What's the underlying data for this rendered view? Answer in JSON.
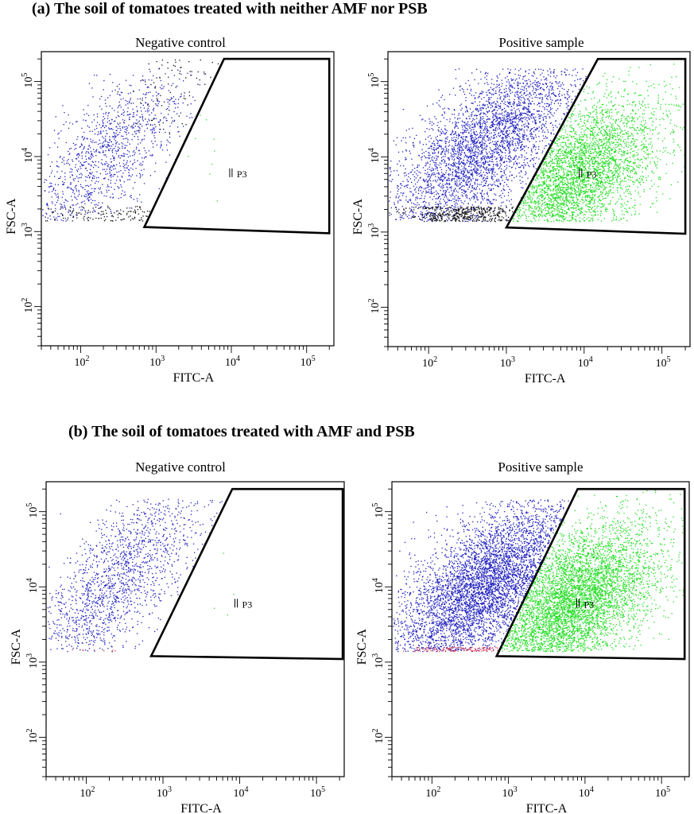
{
  "sections": [
    {
      "label": "(a) The soil of tomatoes treated with neither AMF nor PSB"
    },
    {
      "label": "(b) The soil of tomatoes treated with AMF and PSB"
    }
  ],
  "colors": {
    "negative_events": "#1f1fbf",
    "debris_events": "#111111",
    "gated_events": "#22dd22",
    "low_events": "#e0405a",
    "gate_outline": "#000000"
  },
  "chart_data": [
    {
      "type": "scatter",
      "title": "Negative control",
      "xlabel": "FITC-A",
      "ylabel": "FSC-A",
      "xscale": "log",
      "yscale": "log",
      "xlim": [
        30,
        230000
      ],
      "ylim": [
        30,
        250000
      ],
      "xticks": [
        {
          "value": 100,
          "label": "10",
          "exp": "2"
        },
        {
          "value": 1000,
          "label": "10",
          "exp": "3"
        },
        {
          "value": 10000,
          "label": "10",
          "exp": "4"
        },
        {
          "value": 100000,
          "label": "10",
          "exp": "5"
        }
      ],
      "yticks": [
        {
          "value": 100,
          "label": "10",
          "exp": "2"
        },
        {
          "value": 1000,
          "label": "10",
          "exp": "3"
        },
        {
          "value": 10000,
          "label": "10",
          "exp": "4"
        },
        {
          "value": 100000,
          "label": "10",
          "exp": "5"
        }
      ],
      "gate": {
        "name": "P3",
        "label_at": [
          11000,
          6000
        ],
        "vertices": [
          [
            700,
            1150
          ],
          [
            8000,
            200000
          ],
          [
            200000,
            200000
          ],
          [
            200000,
            950
          ]
        ]
      },
      "populations": [
        {
          "name": "ungated",
          "color": "#1f1fbf",
          "count": 1100,
          "x_range": [
            30,
            8000
          ],
          "x_peak": 200,
          "y_range": [
            1400,
            150000
          ],
          "slope": 0.85
        },
        {
          "name": "debris",
          "color": "#111111",
          "count": 130,
          "x_range": [
            30,
            20000
          ],
          "x_peak": 300,
          "y_range": [
            1400,
            2200
          ],
          "slope": 0
        },
        {
          "name": "debris-diag",
          "color": "#111111",
          "count": 90,
          "x_range": [
            300,
            20000
          ],
          "x_peak": 2000,
          "y_range": [
            20000,
            200000
          ],
          "slope": 0.9
        },
        {
          "name": "gated",
          "color": "#22dd22",
          "count": 9,
          "x_range": [
            2500,
            12000
          ],
          "x_peak": 5000,
          "y_range": [
            1400,
            60000
          ],
          "slope": 0
        }
      ]
    },
    {
      "type": "scatter",
      "title": "Positive sample",
      "xlabel": "FITC-A",
      "ylabel": "FSC-A",
      "xscale": "log",
      "yscale": "log",
      "xlim": [
        30,
        230000
      ],
      "ylim": [
        30,
        250000
      ],
      "xticks": [
        {
          "value": 100,
          "label": "10",
          "exp": "2"
        },
        {
          "value": 1000,
          "label": "10",
          "exp": "3"
        },
        {
          "value": 10000,
          "label": "10",
          "exp": "4"
        },
        {
          "value": 100000,
          "label": "10",
          "exp": "5"
        }
      ],
      "yticks": [
        {
          "value": 100,
          "label": "10",
          "exp": "2"
        },
        {
          "value": 1000,
          "label": "10",
          "exp": "3"
        },
        {
          "value": 10000,
          "label": "10",
          "exp": "4"
        },
        {
          "value": 100000,
          "label": "10",
          "exp": "5"
        }
      ],
      "gate": {
        "name": "P3",
        "label_at": [
          10000,
          6000
        ],
        "vertices": [
          [
            1000,
            1150
          ],
          [
            15000,
            200000
          ],
          [
            200000,
            200000
          ],
          [
            200000,
            950
          ]
        ]
      },
      "populations": [
        {
          "name": "ungated",
          "color": "#1f1fbf",
          "count": 3300,
          "x_range": [
            30,
            15000
          ],
          "x_peak": 500,
          "y_range": [
            1400,
            150000
          ],
          "slope": 0.7
        },
        {
          "name": "debris",
          "color": "#111111",
          "count": 450,
          "x_range": [
            30,
            1200
          ],
          "x_peak": 300,
          "y_range": [
            1400,
            2200
          ],
          "slope": 0
        },
        {
          "name": "gated",
          "color": "#22dd22",
          "count": 3300,
          "x_range": [
            1000,
            200000
          ],
          "x_peak": 8000,
          "y_range": [
            1400,
            200000
          ],
          "slope": 0.5
        }
      ]
    },
    {
      "type": "scatter",
      "title": "Negative control",
      "xlabel": "FITC-A",
      "ylabel": "FSC-A",
      "xscale": "log",
      "yscale": "log",
      "xlim": [
        30,
        230000
      ],
      "ylim": [
        30,
        250000
      ],
      "xticks": [
        {
          "value": 100,
          "label": "10",
          "exp": "2"
        },
        {
          "value": 1000,
          "label": "10",
          "exp": "3"
        },
        {
          "value": 10000,
          "label": "10",
          "exp": "4"
        },
        {
          "value": 100000,
          "label": "10",
          "exp": "5"
        }
      ],
      "yticks": [
        {
          "value": 100,
          "label": "10",
          "exp": "2"
        },
        {
          "value": 1000,
          "label": "10",
          "exp": "3"
        },
        {
          "value": 10000,
          "label": "10",
          "exp": "4"
        },
        {
          "value": 100000,
          "label": "10",
          "exp": "5"
        }
      ],
      "gate": {
        "name": "P3",
        "label_at": [
          10000,
          6000
        ],
        "vertices": [
          [
            700,
            1200
          ],
          [
            8000,
            200000
          ],
          [
            220000,
            200000
          ],
          [
            220000,
            1100
          ]
        ]
      },
      "populations": [
        {
          "name": "ungated",
          "color": "#1f1fbf",
          "count": 1500,
          "x_range": [
            30,
            8000
          ],
          "x_peak": 250,
          "y_range": [
            1400,
            150000
          ],
          "slope": 0.85
        },
        {
          "name": "low",
          "color": "#e0405a",
          "count": 8,
          "x_range": [
            30,
            700
          ],
          "x_peak": 100,
          "y_range": [
            1400,
            1500
          ],
          "slope": 0
        },
        {
          "name": "gated",
          "color": "#22dd22",
          "count": 4,
          "x_range": [
            3000,
            12000
          ],
          "x_peak": 6000,
          "y_range": [
            3000,
            60000
          ],
          "slope": 0
        }
      ]
    },
    {
      "type": "scatter",
      "title": "Positive sample",
      "xlabel": "FITC-A",
      "ylabel": "FSC-A",
      "xscale": "log",
      "yscale": "log",
      "xlim": [
        30,
        230000
      ],
      "ylim": [
        30,
        250000
      ],
      "xticks": [
        {
          "value": 100,
          "label": "10",
          "exp": "2"
        },
        {
          "value": 1000,
          "label": "10",
          "exp": "3"
        },
        {
          "value": 10000,
          "label": "10",
          "exp": "4"
        },
        {
          "value": 100000,
          "label": "10",
          "exp": "5"
        }
      ],
      "yticks": [
        {
          "value": 100,
          "label": "10",
          "exp": "2"
        },
        {
          "value": 1000,
          "label": "10",
          "exp": "3"
        },
        {
          "value": 10000,
          "label": "10",
          "exp": "4"
        },
        {
          "value": 100000,
          "label": "10",
          "exp": "5"
        }
      ],
      "gate": {
        "name": "P3",
        "label_at": [
          9000,
          6000
        ],
        "vertices": [
          [
            700,
            1200
          ],
          [
            8000,
            200000
          ],
          [
            200000,
            200000
          ],
          [
            200000,
            1100
          ]
        ]
      },
      "populations": [
        {
          "name": "ungated",
          "color": "#1f1fbf",
          "count": 4500,
          "x_range": [
            30,
            10000
          ],
          "x_peak": 500,
          "y_range": [
            1400,
            150000
          ],
          "slope": 0.6
        },
        {
          "name": "low",
          "color": "#e0405a",
          "count": 120,
          "x_range": [
            30,
            1500
          ],
          "x_peak": 300,
          "y_range": [
            1400,
            1600
          ],
          "slope": 0
        },
        {
          "name": "gated",
          "color": "#22dd22",
          "count": 4800,
          "x_range": [
            700,
            200000
          ],
          "x_peak": 6000,
          "y_range": [
            1400,
            200000
          ],
          "slope": 0.5
        }
      ]
    }
  ]
}
